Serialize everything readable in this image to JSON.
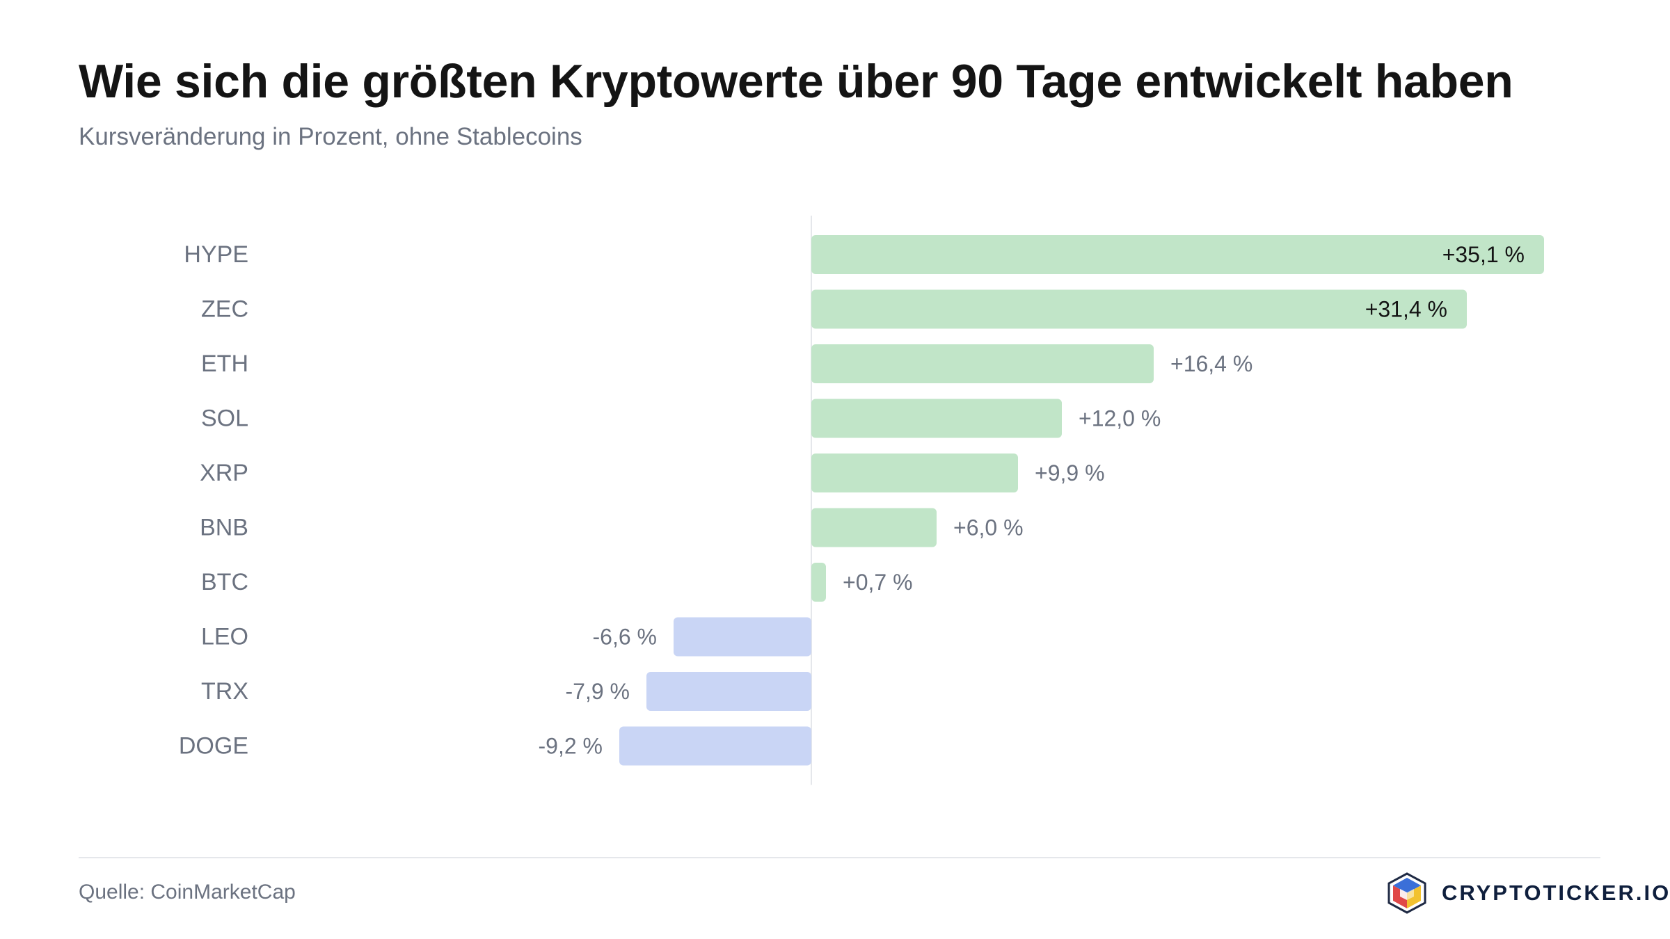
{
  "header": {
    "title": "Wie sich die größten Kryptowerte über 90 Tage entwickelt haben",
    "subtitle": "Kursveränderung in Prozent, ohne Stablecoins"
  },
  "footer": {
    "source": "Quelle: CoinMarketCap",
    "brand": "CRYPTOTICKER.IO"
  },
  "colors": {
    "positive": "#c1e5c8",
    "negative": "#c9d5f5",
    "axis": "#e5e7eb",
    "label": "#6b7280",
    "inside_label": "#141414"
  },
  "icons": {
    "logo": "cube-logo-icon"
  },
  "chart_data": {
    "type": "bar",
    "orientation": "horizontal",
    "categories": [
      "HYPE",
      "ZEC",
      "ETH",
      "SOL",
      "XRP",
      "BNB",
      "BTC",
      "LEO",
      "TRX",
      "DOGE"
    ],
    "values": [
      35.1,
      31.4,
      16.4,
      12.0,
      9.9,
      6.0,
      0.7,
      -6.6,
      -7.9,
      -9.2
    ],
    "data_labels": [
      "+35,1 %",
      "+31,4 %",
      "+16,4 %",
      "+12,0 %",
      "+9,9 %",
      "+6,0 %",
      "+0,7 %",
      "-6,6 %",
      "-7,9 %",
      "-9,2 %"
    ],
    "title": "Wie sich die größten Kryptowerte über 90 Tage entwickelt haben",
    "subtitle": "Kursveränderung in Prozent, ohne Stablecoins",
    "xlabel": "",
    "ylabel": "",
    "grid": false,
    "legend": "none"
  }
}
